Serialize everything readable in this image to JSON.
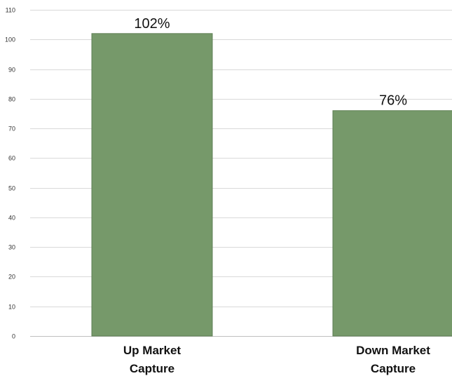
{
  "chart_data": {
    "type": "bar",
    "title": "",
    "xlabel": "",
    "ylabel": "",
    "categories": [
      [
        "Up Market",
        "Capture"
      ],
      [
        "Down Market",
        "Capture"
      ]
    ],
    "values": [
      102,
      76
    ],
    "data_labels": [
      "102%",
      "76%"
    ],
    "ylim": [
      0,
      110
    ],
    "yticks": [
      0,
      10,
      20,
      30,
      40,
      50,
      60,
      70,
      80,
      90,
      100,
      110
    ],
    "grid": true,
    "legend": "none",
    "bar_color": "#76996a",
    "bar_edge_color": "#5f7f55"
  }
}
